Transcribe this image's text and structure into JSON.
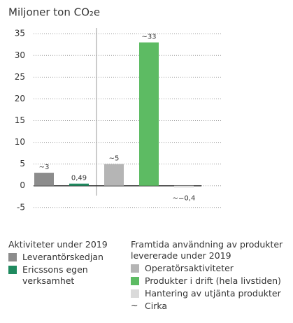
{
  "chart_data": {
    "type": "bar",
    "title": "Miljoner ton CO₂e",
    "categories": [
      null,
      null,
      null,
      null,
      null
    ],
    "values": [
      3,
      0.49,
      5,
      33,
      -0.4
    ],
    "value_labels": [
      "~3",
      "0,49",
      "~5",
      "~33",
      "~−0,4"
    ],
    "colors": [
      "#8c8c8c",
      "#1f8a5f",
      "#b5b5b5",
      "#5dbb63",
      "#dadada"
    ],
    "ylim": [
      -6,
      36
    ],
    "yticks": [
      -5,
      0,
      5,
      10,
      15,
      20,
      25,
      30,
      35
    ],
    "grid": true,
    "legend": [
      {
        "title": "Aktiviteter under 2019",
        "entries": [
          "Leverantörskedjan",
          "Ericssons egen verksamhet"
        ]
      },
      {
        "title": "Framtida användning av produkter levererade under 2019",
        "entries": [
          "Operatörsaktiviteter",
          "Produkter i drift (hela livstiden)",
          "Hantering av utjänta produkter"
        ]
      }
    ],
    "note_symbol": "~",
    "note": "Cirka"
  }
}
